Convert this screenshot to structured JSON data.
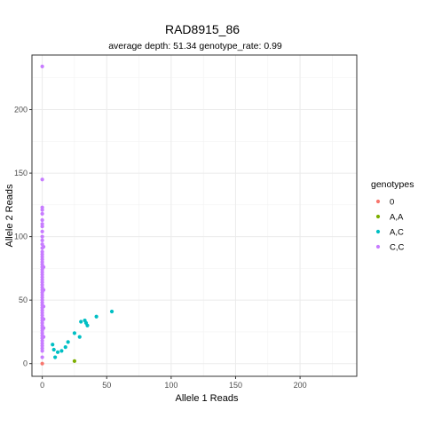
{
  "chart_data": {
    "type": "scatter",
    "title": "RAD8915_86",
    "subtitle": "average depth:  51.34  genotype_rate:  0.99",
    "xlabel": "Allele 1 Reads",
    "ylabel": "Allele 2 Reads",
    "xlim": [
      -8,
      244
    ],
    "ylim": [
      -10,
      243
    ],
    "xticks": [
      0,
      50,
      100,
      150,
      200
    ],
    "yticks": [
      0,
      50,
      100,
      150,
      200
    ],
    "grid": true,
    "legend": {
      "title": "genotypes",
      "position": "right",
      "entries": [
        {
          "label": "0",
          "color": "#F8766D"
        },
        {
          "label": "A,A",
          "color": "#7CAE00"
        },
        {
          "label": "A,C",
          "color": "#00BFC4"
        },
        {
          "label": "C,C",
          "color": "#C77CFF"
        }
      ]
    },
    "series": [
      {
        "name": "0",
        "color": "#F8766D",
        "points": [
          [
            0,
            0
          ]
        ]
      },
      {
        "name": "A,A",
        "color": "#7CAE00",
        "points": [
          [
            25,
            2
          ]
        ]
      },
      {
        "name": "A,C",
        "color": "#00BFC4",
        "points": [
          [
            8,
            15
          ],
          [
            9,
            11
          ],
          [
            10,
            5
          ],
          [
            12,
            9
          ],
          [
            15,
            10
          ],
          [
            18,
            13
          ],
          [
            20,
            17
          ],
          [
            25,
            24
          ],
          [
            29,
            21
          ],
          [
            30,
            33
          ],
          [
            33,
            34
          ],
          [
            35,
            30
          ],
          [
            34,
            32
          ],
          [
            42,
            37
          ],
          [
            54,
            41
          ]
        ]
      },
      {
        "name": "C,C",
        "color": "#C77CFF",
        "points": [
          [
            0,
            234
          ],
          [
            0,
            145
          ],
          [
            0,
            123
          ],
          [
            0,
            121
          ],
          [
            0,
            118
          ],
          [
            0,
            113
          ],
          [
            0,
            110
          ],
          [
            0,
            108
          ],
          [
            0,
            104
          ],
          [
            0,
            100
          ],
          [
            0,
            97
          ],
          [
            0,
            94
          ],
          [
            0,
            91
          ],
          [
            0,
            88
          ],
          [
            0,
            86
          ],
          [
            0,
            84
          ],
          [
            0,
            82
          ],
          [
            0,
            80
          ],
          [
            0,
            78
          ],
          [
            0,
            76
          ],
          [
            0,
            74
          ],
          [
            0,
            72
          ],
          [
            0,
            70
          ],
          [
            0,
            68
          ],
          [
            0,
            66
          ],
          [
            0,
            64
          ],
          [
            0,
            62
          ],
          [
            0,
            60
          ],
          [
            0,
            58
          ],
          [
            0,
            56
          ],
          [
            0,
            54
          ],
          [
            0,
            52
          ],
          [
            0,
            50
          ],
          [
            0,
            48
          ],
          [
            0,
            46
          ],
          [
            0,
            44
          ],
          [
            0,
            42
          ],
          [
            0,
            40
          ],
          [
            0,
            38
          ],
          [
            0,
            36
          ],
          [
            0,
            34
          ],
          [
            0,
            32
          ],
          [
            0,
            30
          ],
          [
            0,
            28
          ],
          [
            0,
            26
          ],
          [
            0,
            24
          ],
          [
            0,
            22
          ],
          [
            0,
            20
          ],
          [
            0,
            18
          ],
          [
            0,
            16
          ],
          [
            0,
            14
          ],
          [
            0,
            12
          ],
          [
            0,
            10
          ],
          [
            0,
            5
          ],
          [
            1,
            92
          ],
          [
            1,
            76
          ],
          [
            1,
            58
          ],
          [
            1,
            45
          ],
          [
            1,
            35
          ],
          [
            1,
            28
          ],
          [
            1,
            21
          ]
        ]
      }
    ]
  }
}
